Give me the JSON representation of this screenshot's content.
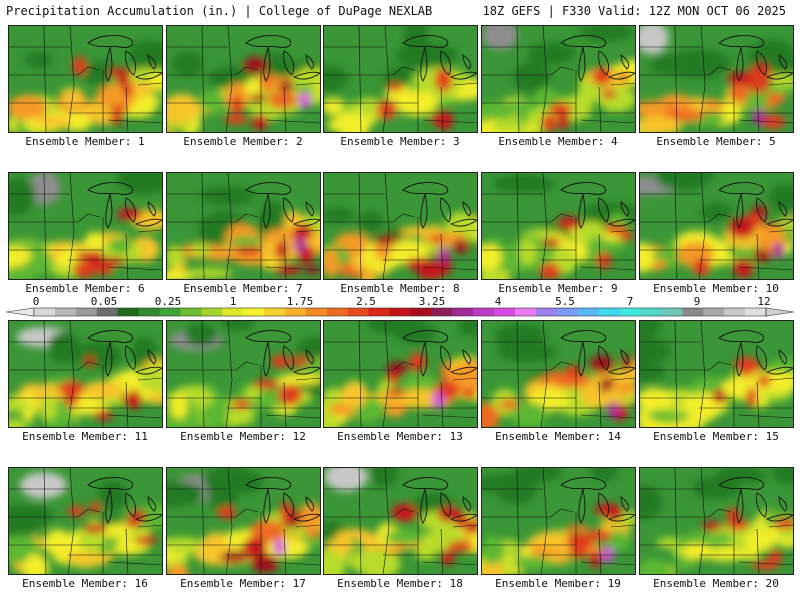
{
  "header": {
    "title": "Precipitation Accumulation (in.) | College of DuPage NEXLAB",
    "run_info": "18Z GEFS | F330 Valid: 12Z MON OCT 06 2025"
  },
  "colorbar": {
    "tick_labels": [
      "0",
      "0.05",
      "0.25",
      "1",
      "1.75",
      "2.5",
      "3.25",
      "4",
      "5.5",
      "7",
      "9",
      "12"
    ],
    "colors": [
      "#d9d9d9",
      "#b8b8b8",
      "#9a9a9a",
      "#6d6d6d",
      "#1e6b1e",
      "#2e8b2e",
      "#3fa53a",
      "#6cbf2e",
      "#a5d42a",
      "#dde82a",
      "#f5f02a",
      "#f7d22a",
      "#f7b02a",
      "#f58a25",
      "#f06a20",
      "#e84a1e",
      "#d8261c",
      "#c21418",
      "#a80c1a",
      "#8c1f5a",
      "#a02a9a",
      "#c03ac8",
      "#d84ae0",
      "#e87af0",
      "#a080f0",
      "#7a9cf5",
      "#5ab8f5",
      "#40d8f0",
      "#40e8e0",
      "#50d8c8",
      "#6cc8b8",
      "#8a8a8a",
      "#a8a8a8",
      "#c8c8c8",
      "#e0e0e0"
    ]
  },
  "members": [
    {
      "label": "Ensemble Member: 1"
    },
    {
      "label": "Ensemble Member: 2"
    },
    {
      "label": "Ensemble Member: 3"
    },
    {
      "label": "Ensemble Member: 4"
    },
    {
      "label": "Ensemble Member: 5"
    },
    {
      "label": "Ensemble Member: 6"
    },
    {
      "label": "Ensemble Member: 7"
    },
    {
      "label": "Ensemble Member: 8"
    },
    {
      "label": "Ensemble Member: 9"
    },
    {
      "label": "Ensemble Member: 10"
    },
    {
      "label": "Ensemble Member: 11"
    },
    {
      "label": "Ensemble Member: 12"
    },
    {
      "label": "Ensemble Member: 13"
    },
    {
      "label": "Ensemble Member: 14"
    },
    {
      "label": "Ensemble Member: 15"
    },
    {
      "label": "Ensemble Member: 16"
    },
    {
      "label": "Ensemble Member: 17"
    },
    {
      "label": "Ensemble Member: 18"
    },
    {
      "label": "Ensemble Member: 19"
    },
    {
      "label": "Ensemble Member: 20"
    }
  ]
}
